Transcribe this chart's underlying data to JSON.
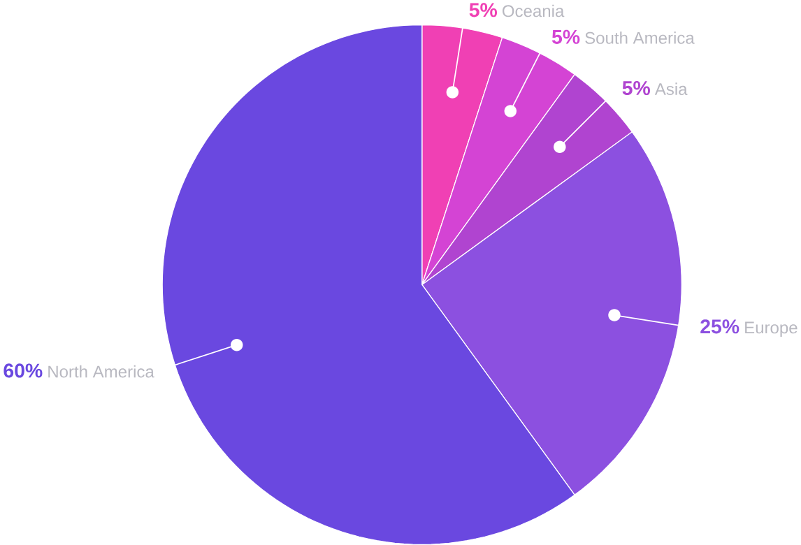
{
  "chart_data": {
    "type": "pie",
    "categories": [
      "Oceania",
      "South America",
      "Asia",
      "Europe",
      "North America"
    ],
    "values": [
      5,
      5,
      5,
      25,
      60
    ],
    "value_labels": [
      "5%",
      "5%",
      "5%",
      "25%",
      "60%"
    ],
    "colors": [
      "#f040b4",
      "#d444d4",
      "#b044d0",
      "#8c50e0",
      "#6a48e0"
    ]
  }
}
